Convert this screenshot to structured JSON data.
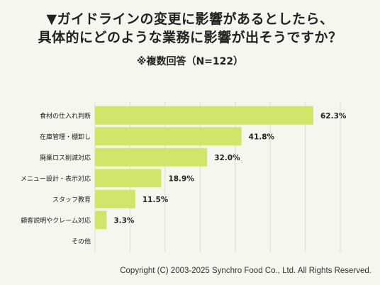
{
  "header": {
    "title_line1": "▼ガイドラインの変更に影響があるとしたら、",
    "title_line2": "具体的にどのような業務に影響が出そうですか？",
    "subtitle": "※複数回答（N=122）"
  },
  "footer": {
    "copyright": "Copyright (C) 2003-2025  Synchro Food Co., Ltd. All Rights Reserved."
  },
  "colors": {
    "bar": "#d2e56b",
    "grid": "#dcdcd4",
    "background": "#f6f5ee"
  },
  "chart_data": {
    "type": "bar",
    "orientation": "horizontal",
    "categories": [
      "食材の仕入れ判断",
      "在庫管理・棚卸し",
      "廃棄ロス削減対応",
      "メニュー設計・表示対応",
      "スタッフ教育",
      "顧客説明やクレーム対応",
      "その他"
    ],
    "values": [
      62.3,
      41.8,
      32.0,
      18.9,
      11.5,
      3.3,
      0
    ],
    "value_labels": [
      "62.3%",
      "41.8%",
      "32.0%",
      "18.9%",
      "11.5%",
      "3.3%",
      ""
    ],
    "xlim": [
      0,
      70
    ],
    "grid": true
  }
}
